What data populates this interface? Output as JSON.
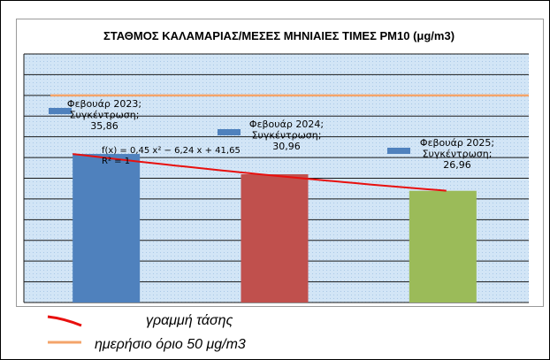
{
  "chart_data": {
    "type": "bar",
    "title": "ΣΤΑΘΜΟΣ ΚΑΛΑΜΑΡΙΑΣ/ΜΕΣΕΣ ΜΗΝΙΑΙΕΣ ΤΙΜΕΣ PM10 (μg/m3)",
    "categories": [
      "Φεβουάρ 2023",
      "Φεβουάρ 2024",
      "Φεβουάρ 2025"
    ],
    "series": [
      {
        "name": "Συγκέντρωση",
        "values": [
          35.86,
          30.96,
          26.96
        ]
      }
    ],
    "bar_colors": [
      "#4F81BD",
      "#C0504D",
      "#9BBB59"
    ],
    "data_labels": [
      [
        "Φεβουάρ 2023;",
        "Συγκέντρωση;",
        "35,86"
      ],
      [
        "Φεβουάρ 2024;",
        "Συγκέντρωση;",
        "30,96"
      ],
      [
        "Φεβουάρ 2025;",
        "Συγκέντρωση;",
        "26,96"
      ]
    ],
    "ylim": [
      0,
      60
    ],
    "grid": true,
    "limit_line": {
      "value": 50,
      "color": "#F4A46A"
    },
    "trendline": {
      "color": "#E8100E",
      "coeffs": [
        0.45,
        -6.24,
        41.65
      ],
      "equation": "f(x) = 0,45 x² − 6,24 x + 41,65",
      "r2": "R² = 1"
    }
  },
  "legend": {
    "trendline_label": "γραμμή τάσης",
    "limit_label": "ημερήσιο όριο 50 μg/m3",
    "trendline_color": "#E8100E",
    "limit_color": "#F4A46A"
  }
}
